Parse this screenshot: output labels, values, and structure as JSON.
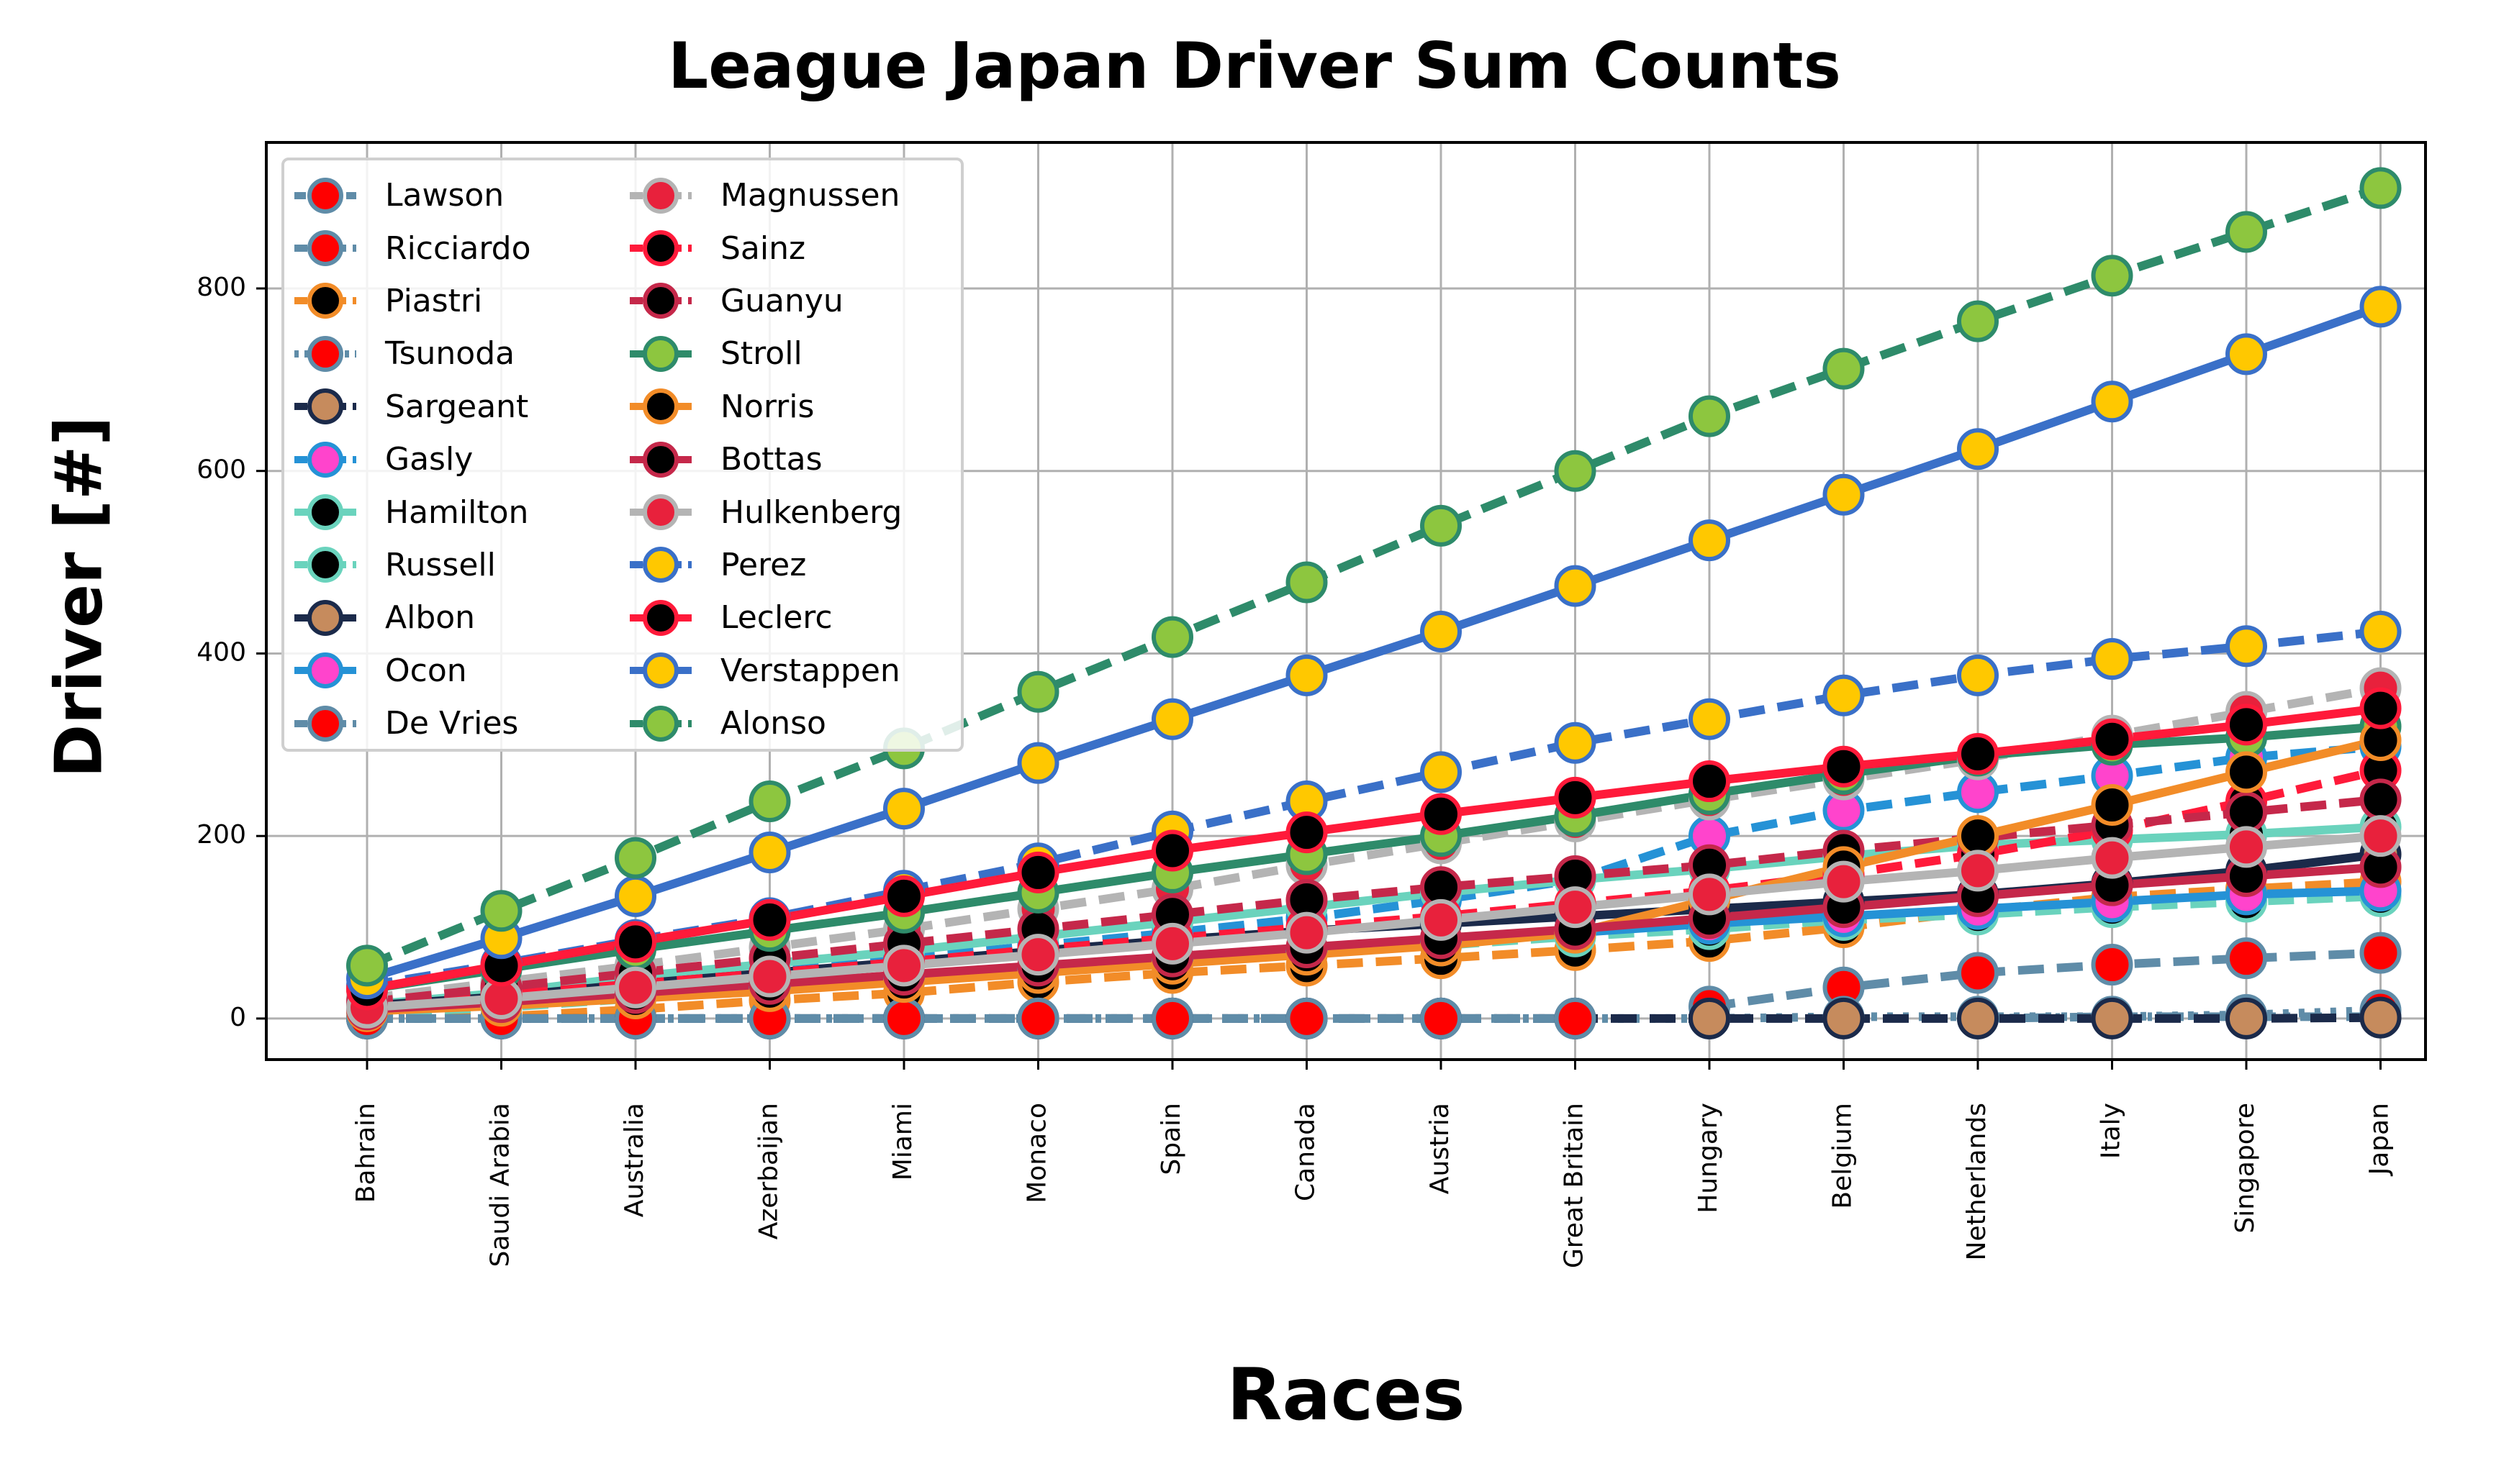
{
  "chart_data": {
    "type": "line",
    "title": "League Japan Driver Sum Counts",
    "xlabel": "Races",
    "ylabel": "Driver [#]",
    "ylim": [
      -45,
      960
    ],
    "yticks": [
      0,
      200,
      400,
      600,
      800
    ],
    "grid": true,
    "legend_placement": "top-left",
    "categories": [
      "Bahrain",
      "Saudi Arabia",
      "Australia",
      "Azerbaijan",
      "Miami",
      "Monaco",
      "Spain",
      "Canada",
      "Austria",
      "Great Britain",
      "Hungary",
      "Belgium",
      "Netherlands",
      "Italy",
      "Singapore",
      "Japan"
    ],
    "series": [
      {
        "name": "Lawson",
        "line_color": "#5f8ca8",
        "marker_fill": "#ff0000",
        "marker_edge": "#5f8ca8",
        "dash": "dashdot",
        "values": [
          null,
          null,
          null,
          null,
          null,
          null,
          null,
          null,
          null,
          null,
          null,
          null,
          0,
          2,
          2,
          2
        ]
      },
      {
        "name": "Ricciardo",
        "line_color": "#5f8ca8",
        "marker_fill": "#ff0000",
        "marker_edge": "#5f8ca8",
        "dash": "dashed",
        "values": [
          null,
          null,
          null,
          null,
          null,
          null,
          null,
          null,
          null,
          null,
          13,
          34,
          50,
          59,
          66,
          72
        ]
      },
      {
        "name": "Piastri",
        "line_color": "#f28c28",
        "marker_fill": "#000000",
        "marker_edge": "#f28c28",
        "dash": "dashed",
        "values": [
          0,
          2,
          10,
          20,
          28,
          40,
          50,
          58,
          66,
          75,
          85,
          100,
          118,
          133,
          142,
          150
        ]
      },
      {
        "name": "Tsunoda",
        "line_color": "#5f8ca8",
        "marker_fill": "#ff0000",
        "marker_edge": "#5f8ca8",
        "dash": "dotted",
        "values": [
          0,
          0,
          0,
          0,
          0,
          0,
          0,
          0,
          0,
          0,
          0,
          2,
          2,
          2,
          4,
          9
        ]
      },
      {
        "name": "Sargeant",
        "line_color": "#1b2a4a",
        "marker_fill": "#c68b5d",
        "marker_edge": "#1b2a4a",
        "dash": "dashed",
        "values": [
          0,
          0,
          0,
          0,
          0,
          0,
          0,
          0,
          0,
          0,
          0,
          0,
          0,
          0,
          0,
          1
        ]
      },
      {
        "name": "Gasly",
        "line_color": "#2592d6",
        "marker_fill": "#ff44cc",
        "marker_edge": "#2592d6",
        "dash": "dashed",
        "values": [
          14,
          26,
          40,
          52,
          66,
          80,
          94,
          110,
          130,
          152,
          200,
          228,
          248,
          266,
          286,
          298
        ]
      },
      {
        "name": "Hamilton",
        "line_color": "#6ad3bd",
        "marker_fill": "#000000",
        "marker_edge": "#6ad3bd",
        "dash": "solid",
        "values": [
          15,
          28,
          46,
          60,
          74,
          90,
          106,
          122,
          138,
          152,
          164,
          178,
          190,
          196,
          202,
          210
        ]
      },
      {
        "name": "Russell",
        "line_color": "#6ad3bd",
        "marker_fill": "#000000",
        "marker_edge": "#6ad3bd",
        "dash": "dashed",
        "values": [
          6,
          12,
          22,
          32,
          42,
          52,
          62,
          72,
          80,
          90,
          98,
          108,
          114,
          122,
          128,
          134
        ]
      },
      {
        "name": "Albon",
        "line_color": "#1b2a4a",
        "marker_fill": "#c68b5d",
        "marker_edge": "#1b2a4a",
        "dash": "solid",
        "values": [
          14,
          24,
          38,
          50,
          62,
          74,
          86,
          96,
          104,
          112,
          120,
          128,
          136,
          148,
          162,
          180
        ]
      },
      {
        "name": "Ocon",
        "line_color": "#2592d6",
        "marker_fill": "#ff44cc",
        "marker_edge": "#2592d6",
        "dash": "solid",
        "values": [
          8,
          16,
          26,
          34,
          44,
          54,
          64,
          74,
          84,
          94,
          104,
          112,
          120,
          128,
          136,
          140
        ]
      },
      {
        "name": "De Vries",
        "line_color": "#5f8ca8",
        "marker_fill": "#ff0000",
        "marker_edge": "#5f8ca8",
        "dash": "dashed",
        "values": [
          0,
          0,
          0,
          0,
          0,
          0,
          0,
          0,
          0,
          0,
          null,
          null,
          null,
          null,
          null,
          null
        ]
      },
      {
        "name": "Magnussen",
        "line_color": "#b4b4b4",
        "marker_fill": "#e8213c",
        "marker_edge": "#b4b4b4",
        "dash": "dashed",
        "values": [
          22,
          40,
          58,
          78,
          98,
          120,
          142,
          168,
          192,
          216,
          240,
          262,
          284,
          310,
          336,
          362
        ]
      },
      {
        "name": "Sainz",
        "line_color": "#ff1a3a",
        "marker_fill": "#000000",
        "marker_edge": "#ff1a3a",
        "dash": "dashed",
        "values": [
          14,
          26,
          38,
          50,
          62,
          76,
          88,
          100,
          112,
          126,
          140,
          158,
          180,
          206,
          238,
          272
        ]
      },
      {
        "name": "Guanyu",
        "line_color": "#c5284a",
        "marker_fill": "#000000",
        "marker_edge": "#c5284a",
        "dash": "dashed",
        "values": [
          18,
          34,
          50,
          66,
          82,
          98,
          114,
          130,
          144,
          156,
          168,
          184,
          198,
          212,
          226,
          240
        ]
      },
      {
        "name": "Stroll",
        "line_color": "#2e8b6a",
        "marker_fill": "#8dc63f",
        "marker_edge": "#2e8b6a",
        "dash": "solid",
        "values": [
          32,
          54,
          76,
          96,
          116,
          138,
          160,
          180,
          200,
          222,
          246,
          268,
          288,
          300,
          308,
          320
        ]
      },
      {
        "name": "Norris",
        "line_color": "#f28c28",
        "marker_fill": "#000000",
        "marker_edge": "#f28c28",
        "dash": "solid",
        "values": [
          8,
          14,
          22,
          30,
          40,
          50,
          60,
          70,
          80,
          94,
          130,
          166,
          200,
          234,
          270,
          305
        ]
      },
      {
        "name": "Bottas",
        "line_color": "#c5284a",
        "marker_fill": "#000000",
        "marker_edge": "#c5284a",
        "dash": "solid",
        "values": [
          10,
          18,
          28,
          38,
          48,
          58,
          68,
          78,
          88,
          98,
          110,
          122,
          134,
          146,
          156,
          166
        ]
      },
      {
        "name": "Hulkenberg",
        "line_color": "#b4b4b4",
        "marker_fill": "#e8213c",
        "marker_edge": "#b4b4b4",
        "dash": "solid",
        "values": [
          12,
          22,
          34,
          46,
          58,
          70,
          82,
          94,
          108,
          122,
          136,
          150,
          162,
          176,
          188,
          200
        ]
      },
      {
        "name": "Perez",
        "line_color": "#3a70c8",
        "marker_fill": "#ffc800",
        "marker_edge": "#3a70c8",
        "dash": "dashed",
        "values": [
          36,
          60,
          86,
          110,
          140,
          170,
          205,
          238,
          270,
          302,
          328,
          354,
          376,
          394,
          408,
          424
        ]
      },
      {
        "name": "Leclerc",
        "line_color": "#ff1a3a",
        "marker_fill": "#000000",
        "marker_edge": "#ff1a3a",
        "dash": "solid",
        "values": [
          32,
          58,
          84,
          108,
          134,
          160,
          184,
          204,
          224,
          242,
          260,
          276,
          290,
          306,
          322,
          340
        ]
      },
      {
        "name": "Verstappen",
        "line_color": "#3a70c8",
        "marker_fill": "#ffc800",
        "marker_edge": "#3a70c8",
        "dash": "solid",
        "values": [
          44,
          88,
          134,
          182,
          230,
          280,
          328,
          376,
          424,
          474,
          524,
          574,
          624,
          676,
          728,
          780
        ]
      },
      {
        "name": "Alonso",
        "line_color": "#2e8b6a",
        "marker_fill": "#8dc63f",
        "marker_edge": "#2e8b6a",
        "dash": "dashed",
        "values": [
          58,
          118,
          176,
          238,
          296,
          358,
          418,
          478,
          540,
          600,
          660,
          712,
          764,
          814,
          862,
          910
        ]
      }
    ]
  }
}
